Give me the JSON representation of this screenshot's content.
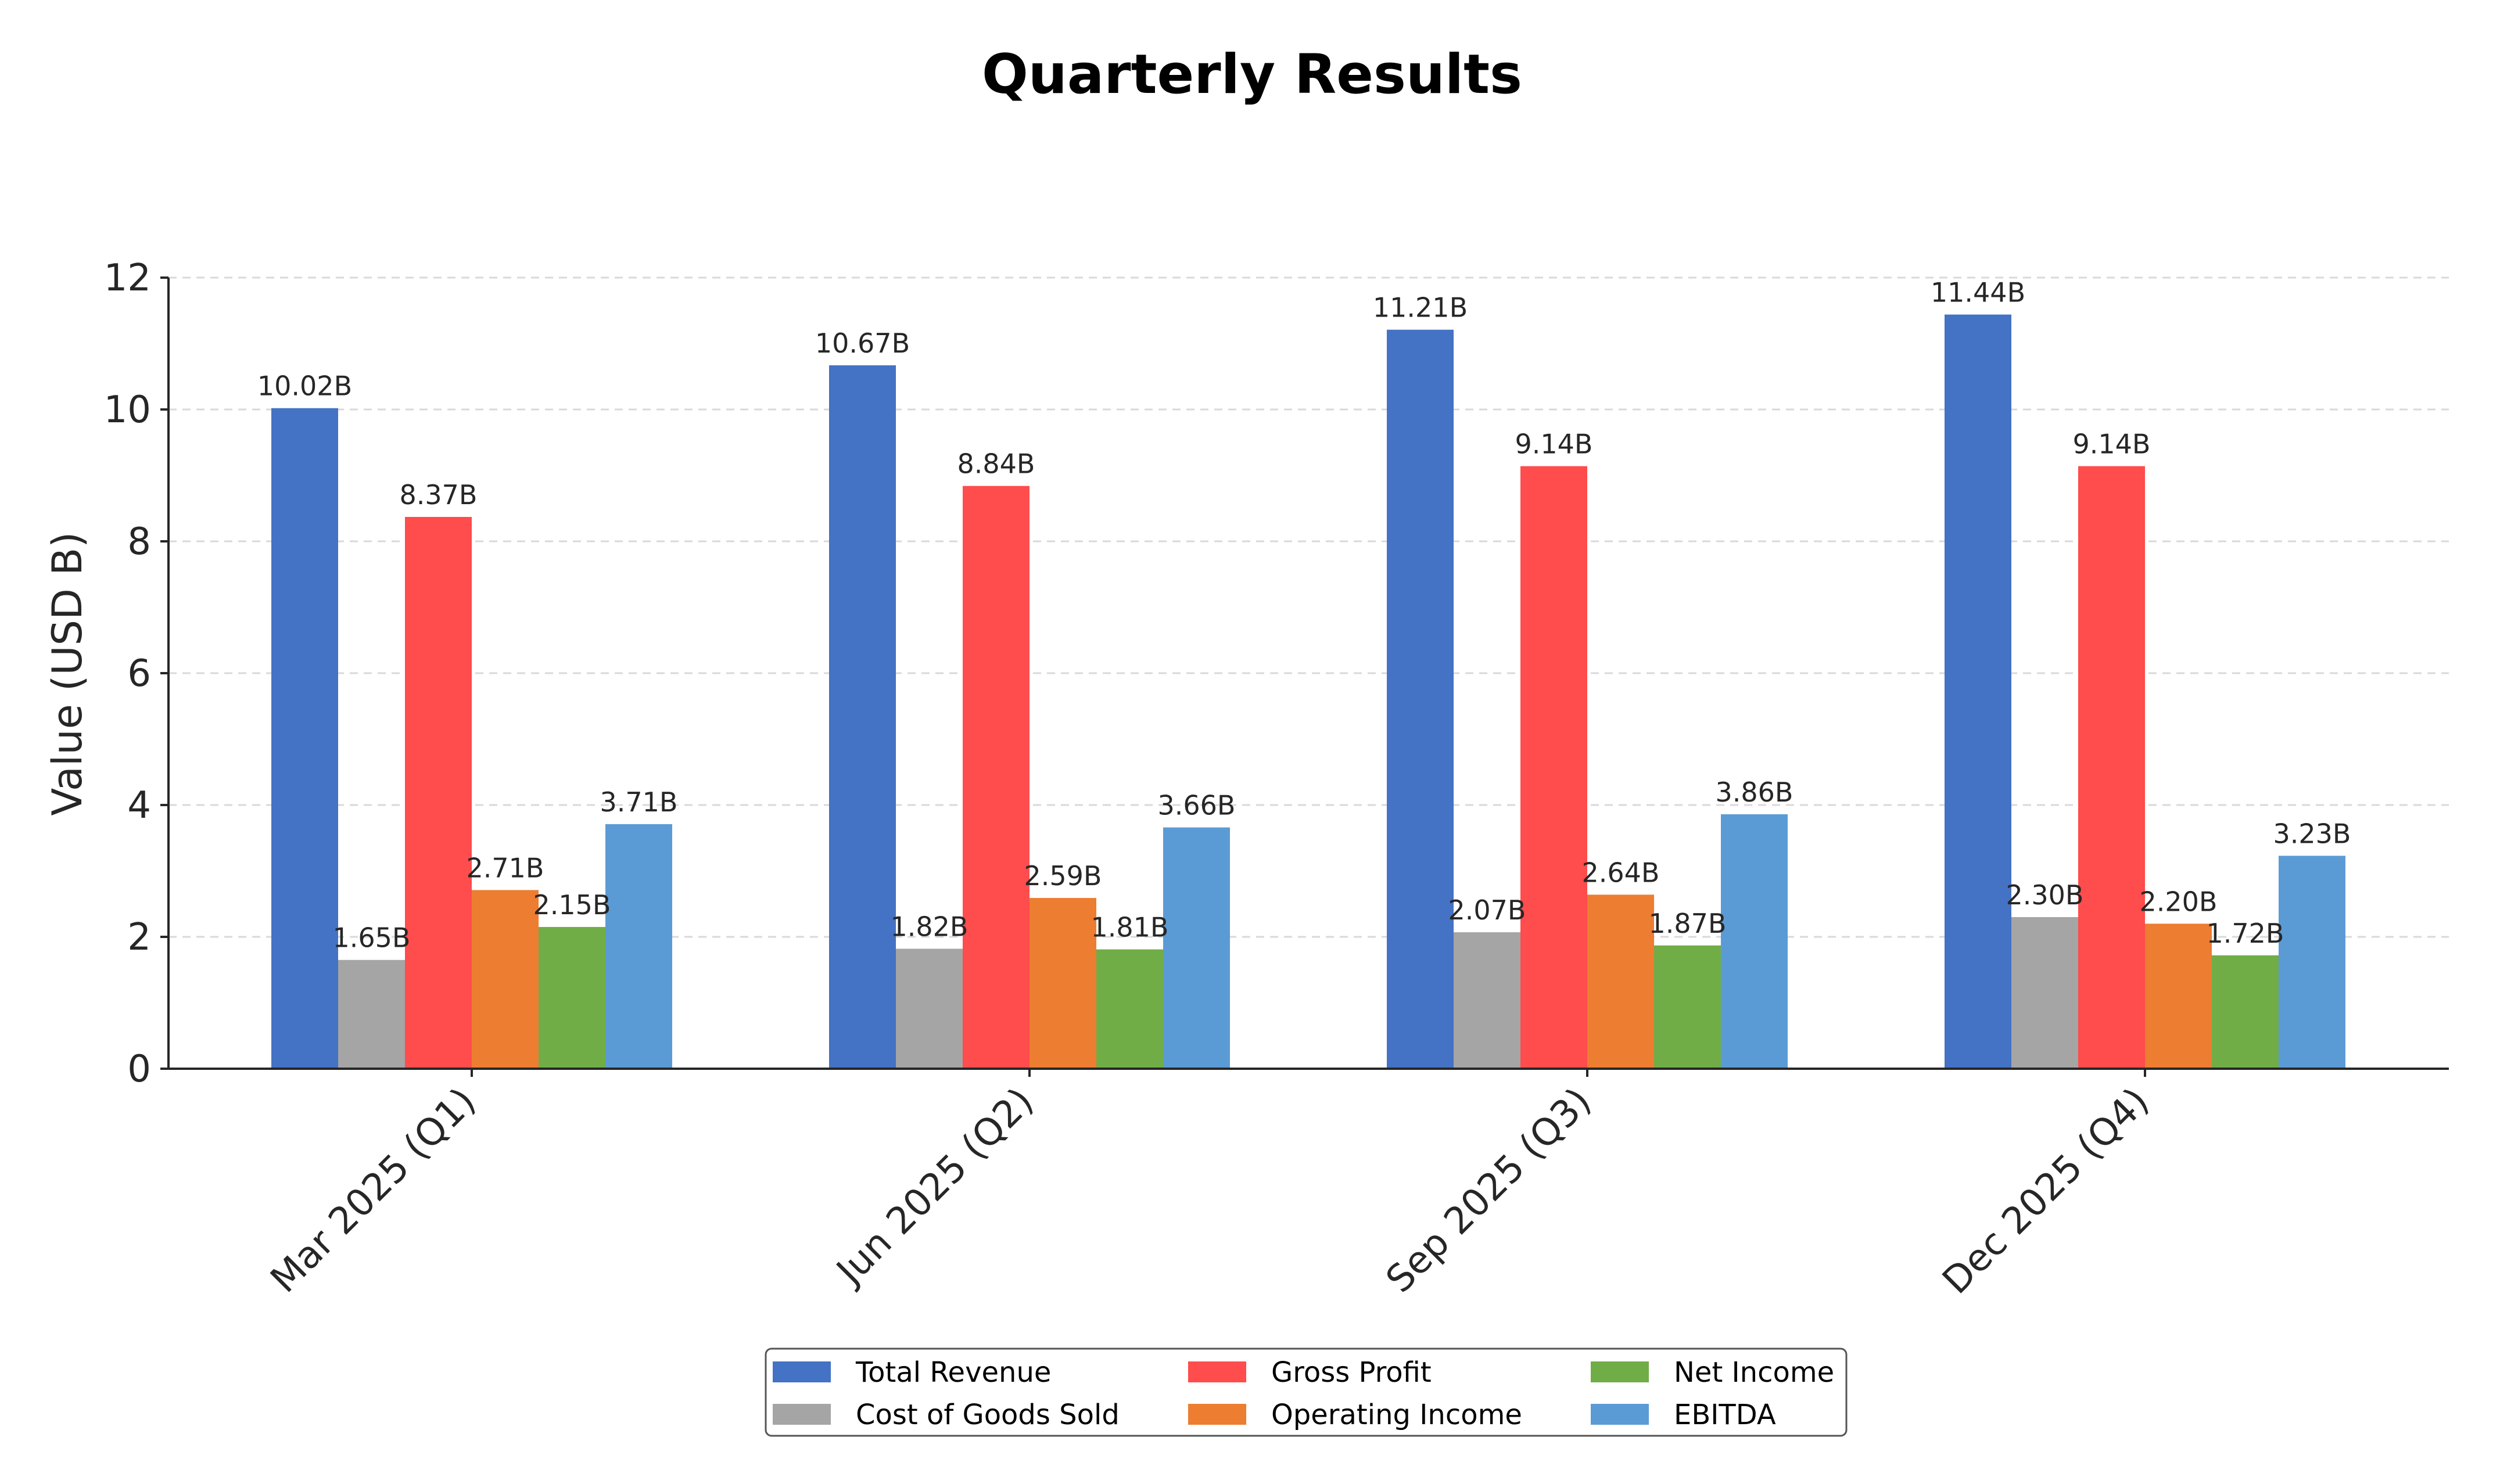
{
  "chart_data": {
    "type": "bar",
    "title": "Quarterly Results",
    "ylabel": "Value (USD B)",
    "xlabel": "",
    "ylim": [
      0,
      12
    ],
    "yticks": [
      "0",
      "2",
      "4",
      "6",
      "8",
      "10",
      "12"
    ],
    "grid": "horizontal dashed",
    "legend_position": "bottom-center",
    "categories": [
      "Mar 2025 (Q1)",
      "Jun 2025 (Q2)",
      "Sep 2025 (Q3)",
      "Dec 2025 (Q4)"
    ],
    "series": [
      {
        "name": "Total Revenue",
        "color": "#4472c4",
        "values": [
          10.02,
          10.67,
          11.21,
          11.44
        ],
        "labels": [
          "10.02B",
          "10.67B",
          "11.21B",
          "11.44B"
        ]
      },
      {
        "name": "Cost of Goods Sold",
        "color": "#a5a5a5",
        "values": [
          1.65,
          1.82,
          2.07,
          2.3
        ],
        "labels": [
          "1.65B",
          "1.82B",
          "2.07B",
          "2.30B"
        ]
      },
      {
        "name": "Gross Profit",
        "color": "#ff4c4c",
        "values": [
          8.37,
          8.84,
          9.14,
          9.14
        ],
        "labels": [
          "8.37B",
          "8.84B",
          "9.14B",
          "9.14B"
        ]
      },
      {
        "name": "Operating Income",
        "color": "#ed7d31",
        "values": [
          2.71,
          2.59,
          2.64,
          2.2
        ],
        "labels": [
          "2.71B",
          "2.59B",
          "2.64B",
          "2.20B"
        ]
      },
      {
        "name": "Net Income",
        "color": "#70ad47",
        "values": [
          2.15,
          1.81,
          1.87,
          1.72
        ],
        "labels": [
          "2.15B",
          "1.81B",
          "1.87B",
          "1.72B"
        ]
      },
      {
        "name": "EBITDA",
        "color": "#5b9bd5",
        "values": [
          3.71,
          3.66,
          3.86,
          3.23
        ],
        "labels": [
          "3.71B",
          "3.66B",
          "3.86B",
          "3.23B"
        ]
      }
    ]
  }
}
